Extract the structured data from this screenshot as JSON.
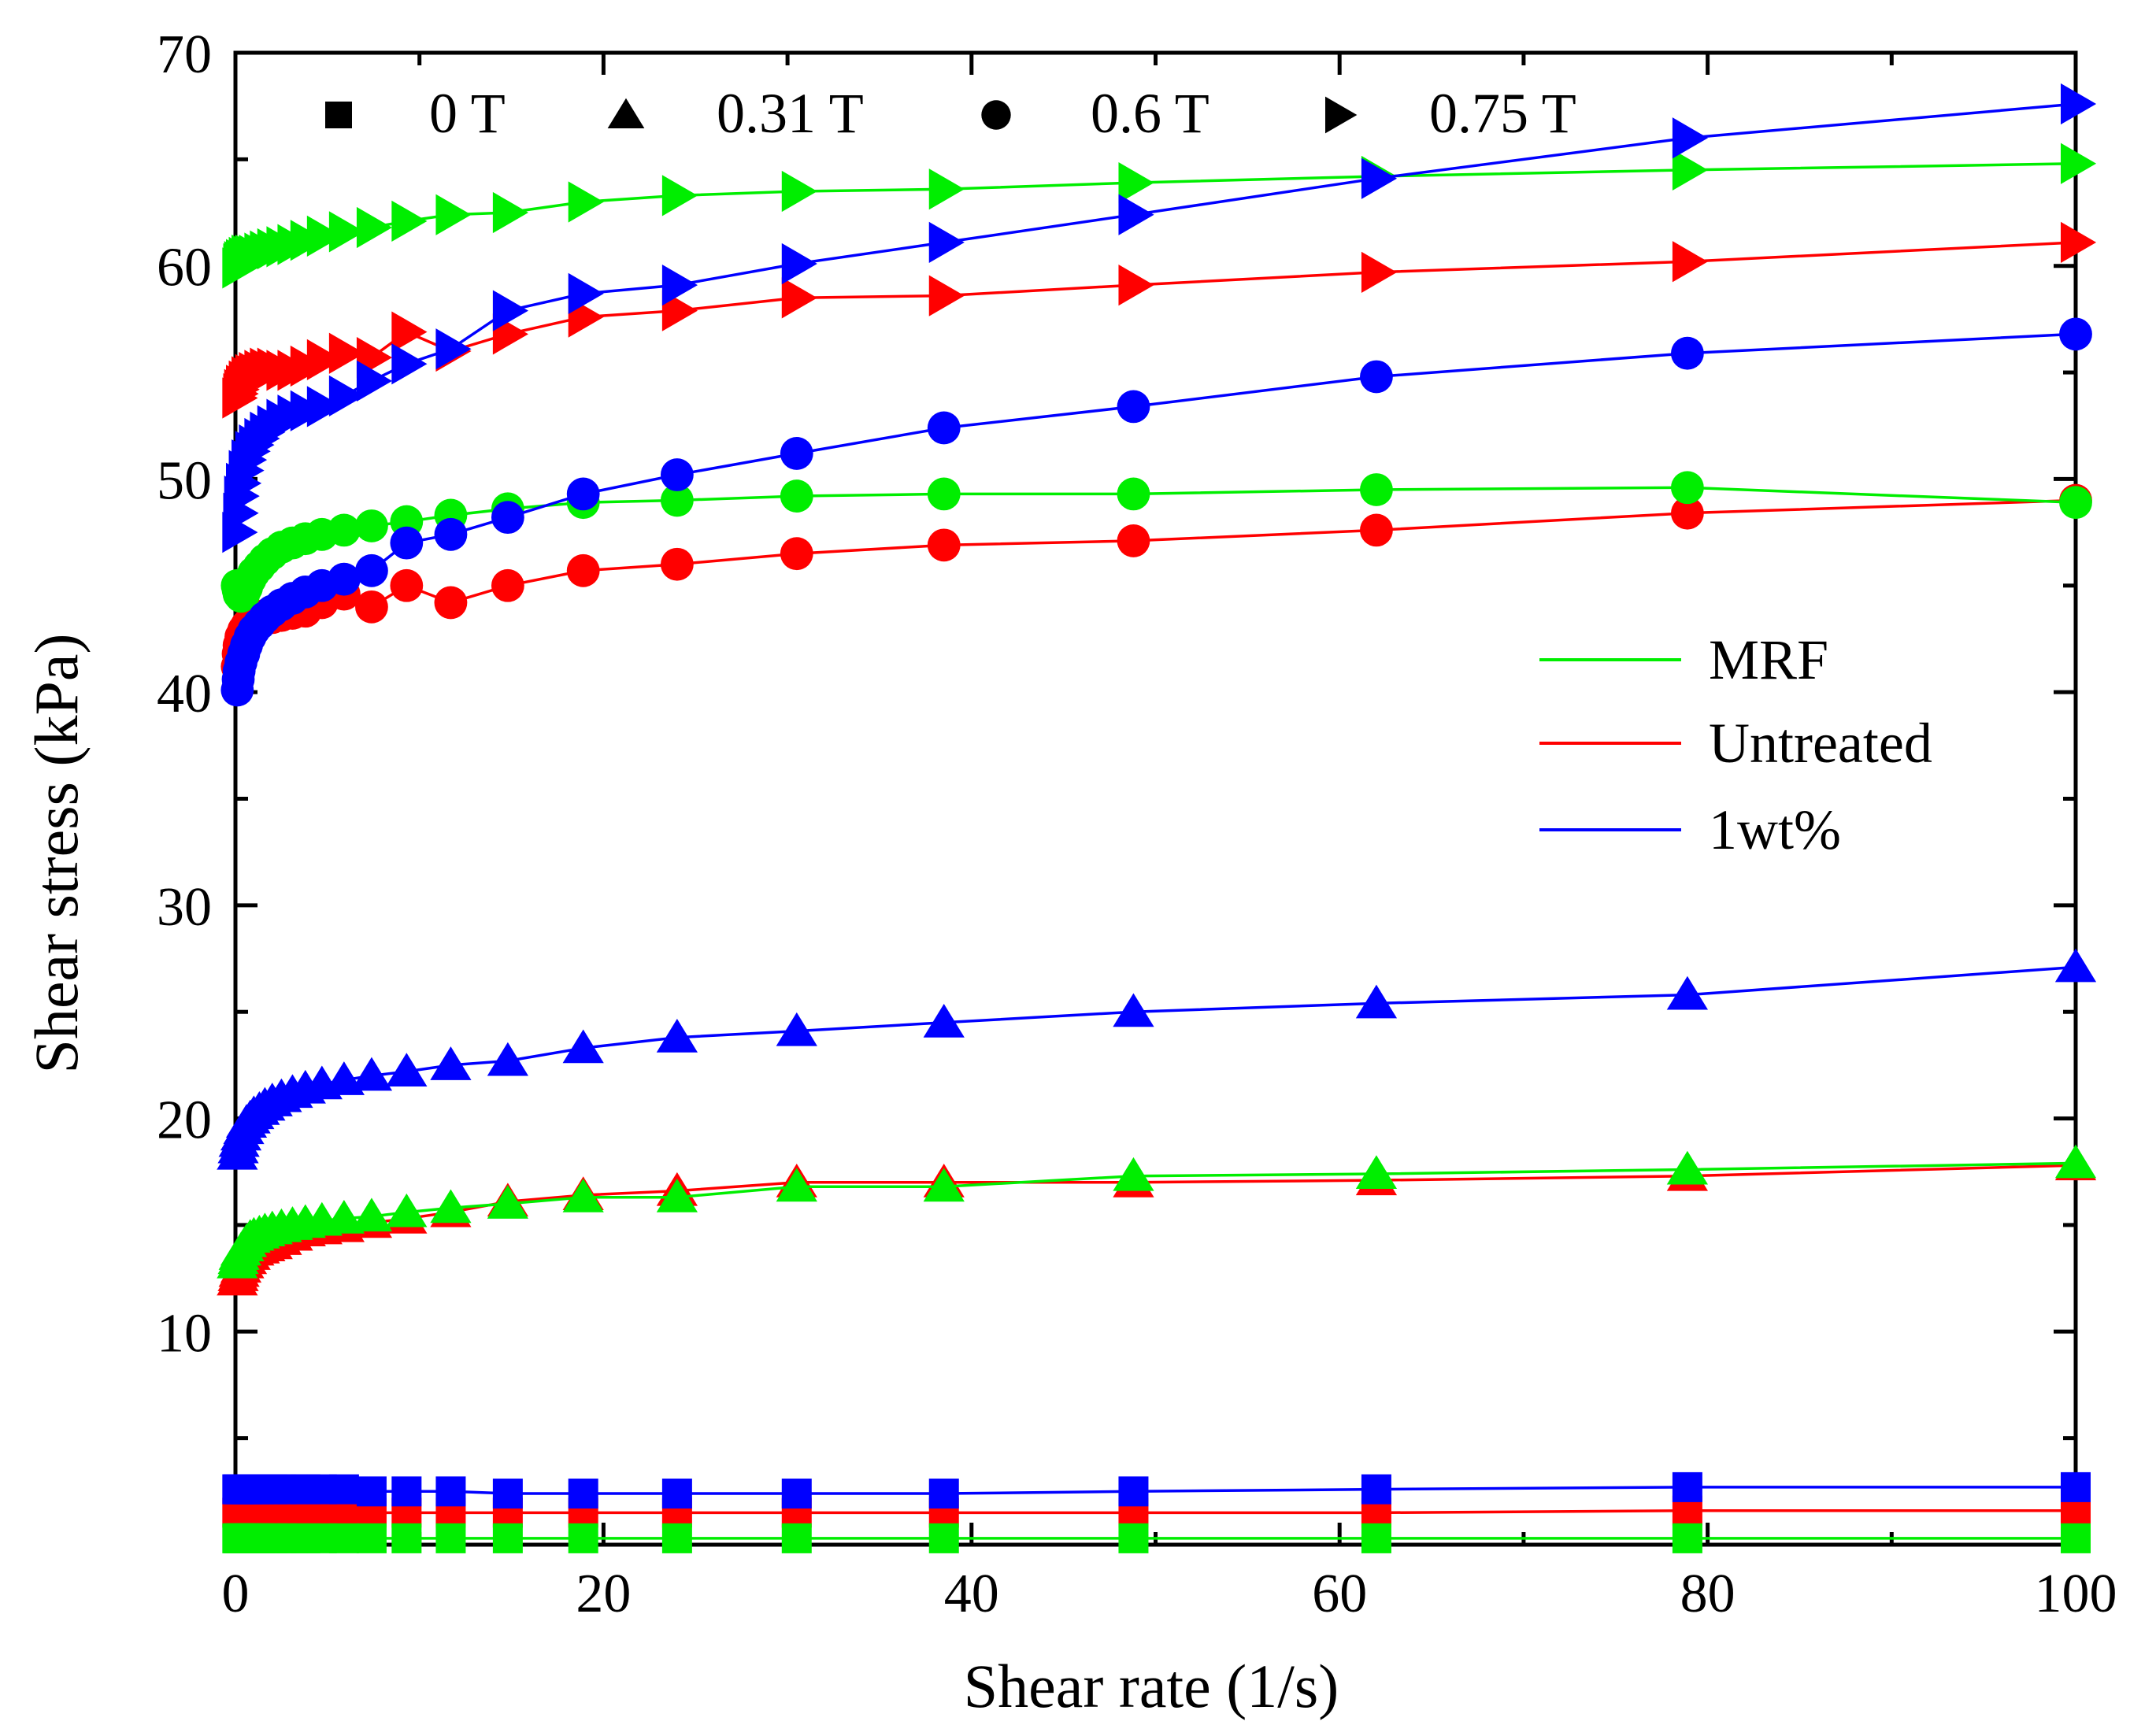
{
  "chart_data": {
    "type": "line",
    "xlabel": "Shear rate (1/s)",
    "ylabel": "Shear stress (kPa)",
    "xlim": [
      0,
      100
    ],
    "ylim": [
      0,
      70
    ],
    "x_ticks": [
      0,
      20,
      40,
      60,
      80,
      100
    ],
    "y_ticks": [
      10,
      20,
      30,
      40,
      50,
      60,
      70
    ],
    "x_tick_labels": [
      "0",
      "20",
      "40",
      "60",
      "80",
      "100"
    ],
    "y_tick_labels": [
      "10",
      "20",
      "30",
      "40",
      "50",
      "60",
      "70"
    ],
    "colors": {
      "MRF": "#00ee00",
      "Untreated": "#ff0000",
      "1wt%": "#0000ff"
    },
    "field_legend": [
      {
        "marker": "square",
        "label": "0 T"
      },
      {
        "marker": "triangle-up",
        "label": "0.31 T"
      },
      {
        "marker": "circle",
        "label": "0.6 T"
      },
      {
        "marker": "triangle-right",
        "label": "0.75 T"
      }
    ],
    "sample_legend": [
      {
        "name": "MRF",
        "label": "MRF"
      },
      {
        "name": "Untreated",
        "label": "Untreated"
      },
      {
        "name": "1wt%",
        "label": "1wt%"
      }
    ],
    "x": [
      0.1,
      0.15,
      0.2,
      0.3,
      0.45,
      0.6,
      0.8,
      1.0,
      1.3,
      1.6,
      2.0,
      2.5,
      3.1,
      3.8,
      4.7,
      5.9,
      7.4,
      9.3,
      11.7,
      14.8,
      18.9,
      24,
      30.5,
      38.5,
      48.8,
      62,
      78.9,
      100
    ],
    "series": [
      {
        "name": "MRF 0 T",
        "sample": "MRF",
        "field": "0 T",
        "marker": "square",
        "values": [
          0.3,
          0.3,
          0.3,
          0.3,
          0.3,
          0.3,
          0.3,
          0.3,
          0.3,
          0.3,
          0.3,
          0.3,
          0.3,
          0.3,
          0.3,
          0.3,
          0.3,
          0.3,
          0.3,
          0.3,
          0.3,
          0.3,
          0.3,
          0.3,
          0.3,
          0.3,
          0.3,
          0.3
        ]
      },
      {
        "name": "Untreated 0 T",
        "sample": "Untreated",
        "field": "0 T",
        "marker": "square",
        "values": [
          1.5,
          1.5,
          1.5,
          1.5,
          1.5,
          1.5,
          1.5,
          1.5,
          1.5,
          1.5,
          1.5,
          1.5,
          1.5,
          1.5,
          1.5,
          1.5,
          1.5,
          1.5,
          1.5,
          1.5,
          1.5,
          1.5,
          1.5,
          1.5,
          1.5,
          1.5,
          1.6,
          1.6
        ]
      },
      {
        "name": "1wt% 0 T",
        "sample": "1wt%",
        "field": "0 T",
        "marker": "square",
        "values": [
          2.6,
          2.6,
          2.6,
          2.6,
          2.6,
          2.6,
          2.6,
          2.6,
          2.6,
          2.6,
          2.6,
          2.6,
          2.6,
          2.6,
          2.6,
          2.6,
          2.5,
          2.5,
          2.5,
          2.4,
          2.4,
          2.4,
          2.4,
          2.4,
          2.5,
          2.6,
          2.7,
          2.7
        ]
      },
      {
        "name": "MRF 0.31 T",
        "sample": "MRF",
        "field": "0.31 T",
        "marker": "triangle-up",
        "values": [
          13.2,
          13.4,
          13.6,
          13.8,
          14.0,
          14.2,
          14.4,
          14.5,
          14.6,
          14.7,
          14.8,
          14.9,
          15.0,
          15.1,
          15.2,
          15.3,
          15.4,
          15.6,
          15.8,
          16.0,
          16.3,
          16.3,
          16.8,
          16.8,
          17.3,
          17.4,
          17.6,
          17.9
        ]
      },
      {
        "name": "Untreated 0.31 T",
        "sample": "Untreated",
        "field": "0.31 T",
        "marker": "triangle-up",
        "values": [
          12.4,
          12.6,
          12.8,
          13.0,
          13.2,
          13.4,
          13.6,
          13.8,
          13.9,
          14.0,
          14.1,
          14.3,
          14.5,
          14.7,
          14.8,
          14.9,
          15.1,
          15.3,
          15.6,
          16.1,
          16.4,
          16.6,
          17.0,
          17.0,
          17.0,
          17.1,
          17.3,
          17.8
        ]
      },
      {
        "name": "1wt% 0.31 T",
        "sample": "1wt%",
        "field": "0.31 T",
        "marker": "triangle-up",
        "values": [
          18.3,
          18.6,
          18.9,
          19.2,
          19.5,
          19.8,
          20.0,
          20.2,
          20.4,
          20.6,
          20.8,
          21.0,
          21.2,
          21.4,
          21.6,
          21.8,
          22.0,
          22.2,
          22.5,
          22.7,
          23.3,
          23.8,
          24.1,
          24.5,
          25.0,
          25.4,
          25.8,
          27.1
        ]
      },
      {
        "name": "MRF 0.6 T",
        "sample": "MRF",
        "field": "0.6 T",
        "marker": "circle",
        "values": [
          45.0,
          44.8,
          44.6,
          44.5,
          44.6,
          44.9,
          45.3,
          45.6,
          45.9,
          46.2,
          46.5,
          46.8,
          47.0,
          47.2,
          47.4,
          47.6,
          47.8,
          48.0,
          48.3,
          48.6,
          48.9,
          49.0,
          49.2,
          49.3,
          49.3,
          49.5,
          49.6,
          48.9
        ]
      },
      {
        "name": "Untreated 0.6 T",
        "sample": "Untreated",
        "field": "0.6 T",
        "marker": "circle",
        "values": [
          41.2,
          41.8,
          42.2,
          42.6,
          42.9,
          43.1,
          43.3,
          43.4,
          43.5,
          43.6,
          43.5,
          43.6,
          43.7,
          43.8,
          44.2,
          44.6,
          44.0,
          45.0,
          44.2,
          45.0,
          45.7,
          46.0,
          46.5,
          46.9,
          47.1,
          47.6,
          48.4,
          49.0
        ]
      },
      {
        "name": "1wt% 0.6 T",
        "sample": "1wt%",
        "field": "0.6 T",
        "marker": "circle",
        "values": [
          40.1,
          40.6,
          41.0,
          41.4,
          41.8,
          42.2,
          42.6,
          42.9,
          43.2,
          43.5,
          43.8,
          44.1,
          44.4,
          44.7,
          45.0,
          45.3,
          45.7,
          47.0,
          47.4,
          48.2,
          49.3,
          50.2,
          51.2,
          52.4,
          53.4,
          54.8,
          55.9,
          56.8
        ]
      },
      {
        "name": "MRF 0.75 T",
        "sample": "MRF",
        "field": "0.75 T",
        "marker": "triangle-right",
        "values": [
          59.9,
          60.1,
          60.2,
          60.3,
          60.4,
          60.5,
          60.5,
          60.5,
          60.6,
          60.7,
          60.8,
          60.9,
          61.0,
          61.2,
          61.4,
          61.6,
          61.8,
          62.1,
          62.4,
          62.5,
          63.0,
          63.3,
          63.5,
          63.6,
          63.9,
          64.2,
          64.5,
          64.8
        ]
      },
      {
        "name": "Untreated 0.75 T",
        "sample": "Untreated",
        "field": "0.75 T",
        "marker": "triangle-right",
        "values": [
          53.8,
          54.0,
          54.2,
          54.4,
          54.6,
          54.8,
          54.9,
          55.0,
          55.1,
          55.2,
          55.2,
          55.1,
          55.1,
          55.3,
          55.6,
          55.9,
          55.7,
          56.9,
          56.0,
          56.8,
          57.6,
          57.9,
          58.5,
          58.6,
          59.1,
          59.7,
          60.2,
          61.1
        ]
      },
      {
        "name": "1wt% 0.75 T",
        "sample": "1wt%",
        "field": "0.75 T",
        "marker": "triangle-right",
        "values": [
          47.5,
          48.4,
          49.2,
          49.8,
          50.4,
          50.9,
          51.3,
          51.6,
          51.9,
          52.2,
          52.5,
          52.8,
          53.0,
          53.2,
          53.4,
          53.9,
          54.6,
          55.4,
          56.1,
          57.9,
          58.7,
          59.1,
          60.1,
          61.1,
          62.4,
          64.1,
          66.0,
          67.6
        ]
      }
    ]
  }
}
